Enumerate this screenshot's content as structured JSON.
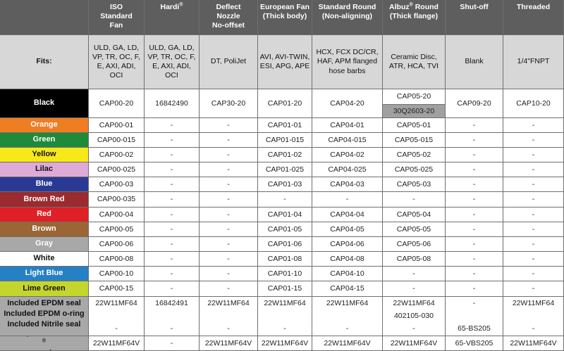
{
  "header": {
    "columns": [
      {
        "lines": [
          "ISO",
          "Standard",
          "Fan"
        ]
      },
      {
        "lines": [
          "Hardi"
        ],
        "sup": "®"
      },
      {
        "lines": [
          "Deflect",
          "Nozzle",
          "No-offset"
        ]
      },
      {
        "lines": [
          "European Fan",
          "(Thick body)"
        ]
      },
      {
        "lines": [
          "Standard Round",
          "(Non-aligning)"
        ]
      },
      {
        "lines": [
          "Albuz",
          "(Thick flange)"
        ],
        "sup": "®",
        "first_suffix": " Round"
      },
      {
        "lines": [
          "Shut-off"
        ]
      },
      {
        "lines": [
          "Threaded"
        ]
      }
    ]
  },
  "fits": {
    "label": "Fits:",
    "values": [
      "ULD, GA, LD, VP, TR, OC, F, E, AXI, ADI, OCI",
      "ULD, GA, LD, VP, TR, OC, F, E, AXI, ADI, OCI",
      "DT, PoliJet",
      "AVI, AVI-TWIN, ESI, APG, APE",
      "HCX, FCX DC/CR, HAF, APM flanged hose barbs",
      "Ceramic Disc, ATR, HCA, TVI",
      "Blank",
      "1/4\"FNPT"
    ]
  },
  "rows": [
    {
      "name": "Black",
      "bg": "#000000",
      "fg": "#ffffff",
      "cells": [
        "CAP00-20",
        "16842490",
        "CAP30-20",
        "CAP01-20",
        "CAP04-20",
        "CAP05-20",
        "CAP09-20",
        "CAP10-20"
      ],
      "extra": "30Q2603-20"
    },
    {
      "name": "Orange",
      "bg": "#ef7d22",
      "fg": "#ffffff",
      "cells": [
        "CAP00-01",
        "-",
        "-",
        "CAP01-01",
        "CAP04-01",
        "CAP05-01",
        "-",
        "-"
      ]
    },
    {
      "name": "Green",
      "bg": "#1f8a3a",
      "fg": "#ffffff",
      "cells": [
        "CAP00-015",
        "-",
        "-",
        "CAP01-015",
        "CAP04-015",
        "CAP05-015",
        "-",
        "-"
      ]
    },
    {
      "name": "Yellow",
      "bg": "#f7e81a",
      "fg": "#111111",
      "cells": [
        "CAP00-02",
        "-",
        "-",
        "CAP01-02",
        "CAP04-02",
        "CAP05-02",
        "-",
        "-"
      ]
    },
    {
      "name": "Lilac",
      "bg": "#deaad6",
      "fg": "#111111",
      "cells": [
        "CAP00-025",
        "-",
        "-",
        "CAP01-025",
        "CAP04-025",
        "CAP05-025",
        "-",
        "-"
      ]
    },
    {
      "name": "Blue",
      "bg": "#2a3a94",
      "fg": "#ffffff",
      "cells": [
        "CAP00-03",
        "-",
        "-",
        "CAP01-03",
        "CAP04-03",
        "CAP05-03",
        "-",
        "-"
      ]
    },
    {
      "name": "Brown Red",
      "bg": "#9a2b2f",
      "fg": "#ffffff",
      "cells": [
        "CAP00-035",
        "-",
        "-",
        "-",
        "-",
        "-",
        "-",
        "-"
      ]
    },
    {
      "name": "Red",
      "bg": "#e01f26",
      "fg": "#ffffff",
      "cells": [
        "CAP00-04",
        "-",
        "-",
        "CAP01-04",
        "CAP04-04",
        "CAP05-04",
        "-",
        "-"
      ]
    },
    {
      "name": "Brown",
      "bg": "#9b6534",
      "fg": "#ffffff",
      "cells": [
        "CAP00-05",
        "-",
        "-",
        "CAP01-05",
        "CAP04-05",
        "CAP05-05",
        "-",
        "-"
      ]
    },
    {
      "name": "Gray",
      "bg": "#a8a8a8",
      "fg": "#ffffff",
      "cells": [
        "CAP00-06",
        "-",
        "-",
        "CAP01-06",
        "CAP04-06",
        "CAP05-06",
        "-",
        "-"
      ]
    },
    {
      "name": "White",
      "bg": "#ffffff",
      "fg": "#111111",
      "cells": [
        "CAP00-08",
        "-",
        "-",
        "CAP01-08",
        "CAP04-08",
        "CAP05-08",
        "-",
        "-"
      ]
    },
    {
      "name": "Light Blue",
      "bg": "#2680c4",
      "fg": "#ffffff",
      "cells": [
        "CAP00-10",
        "-",
        "-",
        "CAP01-10",
        "CAP04-10",
        "-",
        "-",
        "-"
      ]
    },
    {
      "name": "Lime Green",
      "bg": "#c4d62e",
      "fg": "#111111",
      "cells": [
        "CAP00-15",
        "-",
        "-",
        "CAP01-15",
        "CAP04-15",
        "-",
        "-",
        "-"
      ]
    }
  ],
  "seals": {
    "labels": [
      "Included EPDM seal",
      "Included EPDM o-ring",
      "Included Nitrile seal"
    ],
    "cells": [
      {
        "top": "22W11MF64",
        "mid": "",
        "bottom": "-"
      },
      {
        "top": "16842491",
        "mid": "",
        "bottom": "-"
      },
      {
        "top": "22W11MF64",
        "mid": "",
        "bottom": "-"
      },
      {
        "top": "22W11MF64",
        "mid": "",
        "bottom": "-"
      },
      {
        "top": "22W11MF64",
        "mid": "",
        "bottom": "-"
      },
      {
        "top": "22W11MF64",
        "mid": "402105-030",
        "bottom": "-"
      },
      {
        "top": "-",
        "mid": "",
        "bottom": "65-BS205"
      },
      {
        "top": "22W11MF64",
        "mid": "",
        "bottom": "-"
      }
    ]
  },
  "viton": {
    "label": "Separate Viton",
    "label_sup": "®",
    "label_suffix": " seal",
    "cells": [
      "22W11MF64V",
      "-",
      "22W11MF64V",
      "22W11MF64V",
      "22W11MF64V",
      "22W11MF64V",
      "65-VBS205",
      "22W11MF64V"
    ]
  }
}
